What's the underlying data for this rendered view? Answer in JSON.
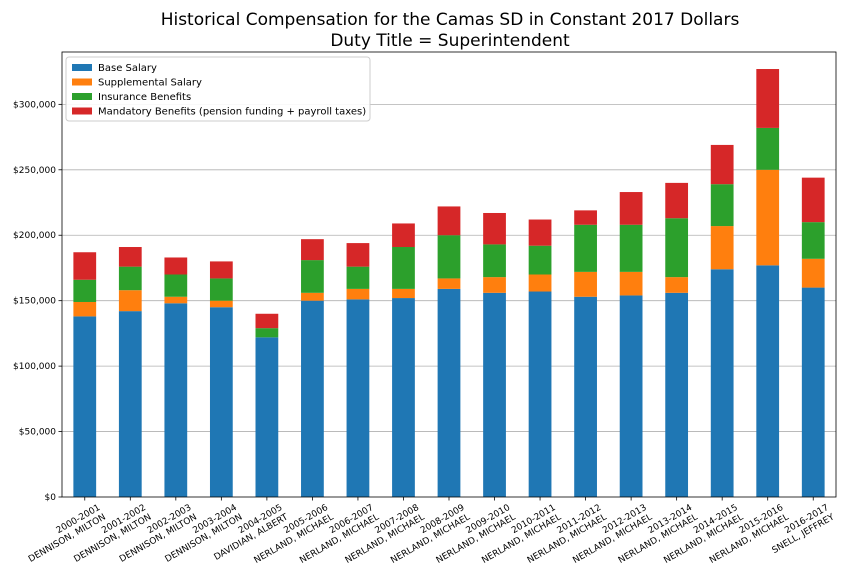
{
  "chart_data": {
    "type": "bar",
    "stacked": true,
    "title": "Historical Compensation for the Camas SD in Constant 2017 Dollars",
    "subtitle": "Duty Title = Superintendent",
    "xlabel": "",
    "ylabel": "",
    "ylim": [
      0,
      340000
    ],
    "yticks": [
      0,
      50000,
      100000,
      150000,
      200000,
      250000,
      300000
    ],
    "ytick_labels": [
      "$0",
      "$50,000",
      "$100,000",
      "$150,000",
      "$200,000",
      "$250,000",
      "$300,000"
    ],
    "grid": "horizontal",
    "legend_position": "top-left",
    "categories": [
      [
        "2000-2001",
        "DENNISON, MILTON"
      ],
      [
        "2001-2002",
        "DENNISON, MILTON"
      ],
      [
        "2002-2003",
        "DENNISON, MILTON"
      ],
      [
        "2003-2004",
        "DENNISON, MILTON"
      ],
      [
        "2004-2005",
        "DAVIDIAN, ALBERT"
      ],
      [
        "2005-2006",
        "NERLAND, MICHAEL"
      ],
      [
        "2006-2007",
        "NERLAND, MICHAEL"
      ],
      [
        "2007-2008",
        "NERLAND, MICHAEL"
      ],
      [
        "2008-2009",
        "NERLAND, MICHAEL"
      ],
      [
        "2009-2010",
        "NERLAND, MICHAEL"
      ],
      [
        "2010-2011",
        "NERLAND, MICHAEL"
      ],
      [
        "2011-2012",
        "NERLAND, MICHAEL"
      ],
      [
        "2012-2013",
        "NERLAND, MICHAEL"
      ],
      [
        "2013-2014",
        "NERLAND, MICHAEL"
      ],
      [
        "2014-2015",
        "NERLAND, MICHAEL"
      ],
      [
        "2015-2016",
        "NERLAND, MICHAEL"
      ],
      [
        "2016-2017",
        "SNELL, JEFFREY"
      ]
    ],
    "series": [
      {
        "name": "Base Salary",
        "color": "#1f77b4",
        "values": [
          138000,
          142000,
          148000,
          145000,
          122000,
          150000,
          151000,
          152000,
          159000,
          156000,
          157000,
          153000,
          154000,
          156000,
          174000,
          177000,
          160000
        ]
      },
      {
        "name": "Supplemental Salary",
        "color": "#ff7f0e",
        "values": [
          11000,
          16000,
          5000,
          5000,
          0,
          6000,
          8000,
          7000,
          8000,
          12000,
          13000,
          19000,
          18000,
          12000,
          33000,
          73000,
          22000
        ]
      },
      {
        "name": "Insurance Benefits",
        "color": "#2ca02c",
        "values": [
          17000,
          18000,
          17000,
          17000,
          7000,
          25000,
          17000,
          32000,
          33000,
          25000,
          22000,
          36000,
          36000,
          45000,
          32000,
          32000,
          28000
        ]
      },
      {
        "name": "Mandatory Benefits (pension funding + payroll taxes)",
        "color": "#d62728",
        "values": [
          21000,
          15000,
          13000,
          13000,
          11000,
          16000,
          18000,
          18000,
          22000,
          24000,
          20000,
          11000,
          25000,
          27000,
          30000,
          45000,
          34000
        ]
      }
    ]
  }
}
